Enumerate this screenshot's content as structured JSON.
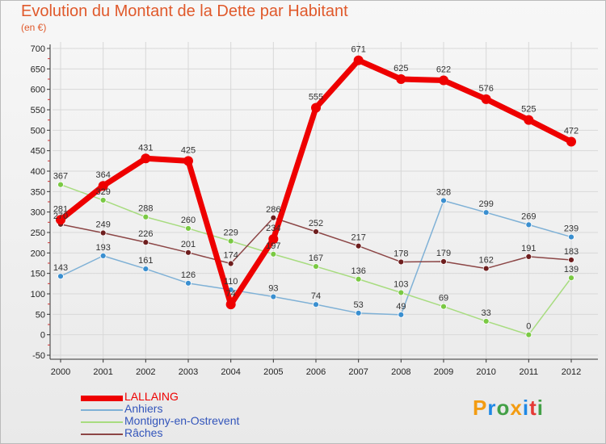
{
  "title": "Evolution du Montant de la Dette par Habitant",
  "subtitle": "(en €)",
  "logo": {
    "letters": [
      "P",
      "r",
      "o",
      "x",
      "i",
      "t",
      "i"
    ],
    "colors": [
      "#f39c12",
      "#1e88e5",
      "#43a047",
      "#f39c12",
      "#1e88e5",
      "#e53935",
      "#43a047"
    ]
  },
  "chart_data": {
    "type": "line",
    "title": "Evolution du Montant de la Dette par Habitant",
    "ylabel": "(en €)",
    "categories": [
      "2000",
      "2001",
      "2002",
      "2003",
      "2004",
      "2005",
      "2006",
      "2007",
      "2008",
      "2009",
      "2010",
      "2011",
      "2012"
    ],
    "ylim": [
      -50,
      700
    ],
    "yticks": [
      -50,
      0,
      50,
      100,
      150,
      200,
      250,
      300,
      350,
      400,
      450,
      500,
      550,
      600,
      650,
      700
    ],
    "series": [
      {
        "name": "LALLAING",
        "color": "#ee0000",
        "line": "#ee0000",
        "width": 7,
        "radius": 6,
        "values": [
          281,
          364,
          431,
          425,
          74,
          234,
          555,
          671,
          625,
          622,
          576,
          525,
          472
        ]
      },
      {
        "name": "Anhiers",
        "color": "#3a8fd0",
        "line": "#7fb1d6",
        "width": 1.5,
        "radius": 3.5,
        "values": [
          143,
          193,
          161,
          126,
          110,
          93,
          74,
          53,
          49,
          328,
          299,
          269,
          239
        ]
      },
      {
        "name": "Montigny-en-Ostrevent",
        "color": "#7ac943",
        "line": "#a8dc80",
        "width": 1.5,
        "radius": 3.5,
        "values": [
          367,
          329,
          288,
          260,
          229,
          197,
          167,
          136,
          103,
          69,
          33,
          0,
          139
        ]
      },
      {
        "name": "Râches",
        "color": "#6e1e1e",
        "line": "#8c4646",
        "width": 1.5,
        "radius": 3.5,
        "values": [
          270,
          249,
          226,
          201,
          174,
          286,
          252,
          217,
          178,
          179,
          162,
          191,
          183
        ]
      }
    ]
  }
}
